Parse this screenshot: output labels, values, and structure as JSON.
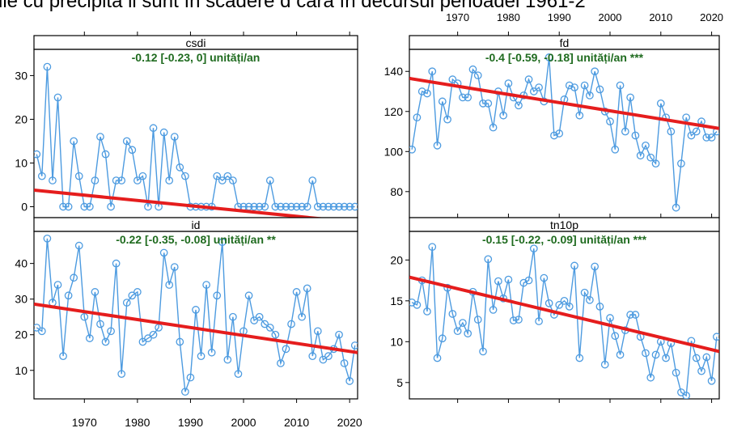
{
  "page": {
    "title": "ile cu precipită ii sunt în scădere d cară în decursul perioadei 1961-2"
  },
  "chart_data": [
    {
      "type": "line",
      "title": "csdi",
      "trend_label": "-0.12 [-0.23, 0] unități/an",
      "x": [
        1961,
        1962,
        1963,
        1964,
        1965,
        1966,
        1967,
        1968,
        1969,
        1970,
        1971,
        1972,
        1973,
        1974,
        1975,
        1976,
        1977,
        1978,
        1979,
        1980,
        1981,
        1982,
        1983,
        1984,
        1985,
        1986,
        1987,
        1988,
        1989,
        1990,
        1991,
        1992,
        1993,
        1994,
        1995,
        1996,
        1997,
        1998,
        1999,
        2000,
        2001,
        2002,
        2003,
        2004,
        2005,
        2006,
        2007,
        2008,
        2009,
        2010,
        2011,
        2012,
        2013,
        2014,
        2015,
        2016,
        2017,
        2018,
        2019,
        2020,
        2021
      ],
      "series": [
        {
          "values": [
            12,
            7,
            32,
            6,
            25,
            0,
            0,
            15,
            7,
            0,
            0,
            6,
            16,
            12,
            0,
            6,
            6,
            15,
            13,
            6,
            7,
            0,
            18,
            0,
            17,
            6,
            16,
            9,
            7,
            0,
            0,
            0,
            0,
            0,
            7,
            6,
            7,
            6,
            0,
            0,
            0,
            0,
            0,
            0,
            6,
            0,
            0,
            0,
            0,
            0,
            0,
            0,
            6,
            0,
            0,
            0,
            0,
            0,
            0,
            0,
            0
          ]
        }
      ],
      "trend": [
        3.8,
        -3.6
      ],
      "xlim": [
        1960.5,
        2021.5
      ],
      "ylim": [
        -2.5,
        36
      ],
      "yticks": [
        0,
        10,
        20,
        30
      ],
      "xticks": [
        1970,
        1980,
        1990,
        2000,
        2010,
        2020
      ]
    },
    {
      "type": "line",
      "title": "fd",
      "trend_label": "-0.4 [-0.59, -0.18] unități/an ***",
      "x": [
        1961,
        1962,
        1963,
        1964,
        1965,
        1966,
        1967,
        1968,
        1969,
        1970,
        1971,
        1972,
        1973,
        1974,
        1975,
        1976,
        1977,
        1978,
        1979,
        1980,
        1981,
        1982,
        1983,
        1984,
        1985,
        1986,
        1987,
        1988,
        1989,
        1990,
        1991,
        1992,
        1993,
        1994,
        1995,
        1996,
        1997,
        1998,
        1999,
        2000,
        2001,
        2002,
        2003,
        2004,
        2005,
        2006,
        2007,
        2008,
        2009,
        2010,
        2011,
        2012,
        2013,
        2014,
        2015,
        2016,
        2017,
        2018,
        2019,
        2020,
        2021
      ],
      "series": [
        {
          "values": [
            101,
            117,
            130,
            129,
            140,
            103,
            125,
            116,
            136,
            134,
            127,
            127,
            141,
            138,
            124,
            124,
            112,
            130,
            118,
            134,
            127,
            123,
            128,
            136,
            130,
            132,
            125,
            147,
            108,
            109,
            126,
            133,
            132,
            118,
            133,
            128,
            140,
            131,
            120,
            115,
            101,
            133,
            110,
            127,
            108,
            98,
            103,
            97,
            94,
            124,
            117,
            110,
            72,
            94,
            117,
            108,
            110,
            115,
            107,
            107,
            110
          ]
        }
      ],
      "trend": [
        136.5,
        111.5
      ],
      "xlim": [
        1960.5,
        2021.5
      ],
      "ylim": [
        67,
        151
      ],
      "yticks": [
        80,
        100,
        120,
        140
      ],
      "xticks": [
        1970,
        1980,
        1990,
        2000,
        2010,
        2020
      ]
    },
    {
      "type": "line",
      "title": "id",
      "trend_label": "-0.22 [-0.35, -0.08] unități/an **",
      "x": [
        1961,
        1962,
        1963,
        1964,
        1965,
        1966,
        1967,
        1968,
        1969,
        1970,
        1971,
        1972,
        1973,
        1974,
        1975,
        1976,
        1977,
        1978,
        1979,
        1980,
        1981,
        1982,
        1983,
        1984,
        1985,
        1986,
        1987,
        1988,
        1989,
        1990,
        1991,
        1992,
        1993,
        1994,
        1995,
        1996,
        1997,
        1998,
        1999,
        2000,
        2001,
        2002,
        2003,
        2004,
        2005,
        2006,
        2007,
        2008,
        2009,
        2010,
        2011,
        2012,
        2013,
        2014,
        2015,
        2016,
        2017,
        2018,
        2019,
        2020,
        2021
      ],
      "series": [
        {
          "values": [
            22,
            21,
            47,
            29,
            34,
            14,
            31,
            36,
            45,
            25,
            19,
            32,
            23,
            18,
            21,
            40,
            9,
            29,
            31,
            32,
            18,
            19,
            20,
            22,
            43,
            34,
            39,
            18,
            4,
            8,
            27,
            14,
            34,
            15,
            31,
            46,
            13,
            25,
            9,
            21,
            31,
            24,
            25,
            23,
            22,
            20,
            12,
            16,
            23,
            32,
            25,
            33,
            14,
            21,
            13,
            14,
            16,
            20,
            12,
            7,
            17
          ]
        }
      ],
      "trend": [
        28.6,
        15.0
      ],
      "xlim": [
        1960.5,
        2021.5
      ],
      "ylim": [
        2,
        49
      ],
      "yticks": [
        10,
        20,
        30,
        40
      ],
      "xticks": [
        1970,
        1980,
        1990,
        2000,
        2010,
        2020
      ]
    },
    {
      "type": "line",
      "title": "tn10p",
      "trend_label": "-0.15 [-0.22, -0.09] unități/an ***",
      "x": [
        1961,
        1962,
        1963,
        1964,
        1965,
        1966,
        1967,
        1968,
        1969,
        1970,
        1971,
        1972,
        1973,
        1974,
        1975,
        1976,
        1977,
        1978,
        1979,
        1980,
        1981,
        1982,
        1983,
        1984,
        1985,
        1986,
        1987,
        1988,
        1989,
        1990,
        1991,
        1992,
        1993,
        1994,
        1995,
        1996,
        1997,
        1998,
        1999,
        2000,
        2001,
        2002,
        2003,
        2004,
        2005,
        2006,
        2007,
        2008,
        2009,
        2010,
        2011,
        2012,
        2013,
        2014,
        2015,
        2016,
        2017,
        2018,
        2019,
        2020,
        2021
      ],
      "series": [
        {
          "values": [
            14.8,
            14.5,
            17.5,
            13.7,
            21.6,
            8.0,
            10.4,
            16.6,
            13.4,
            11.3,
            12.3,
            11.0,
            16.1,
            12.7,
            8.8,
            20.1,
            13.9,
            17.4,
            15.3,
            17.6,
            12.6,
            12.7,
            17.2,
            17.5,
            21.4,
            12.5,
            17.8,
            14.7,
            13.3,
            14.5,
            15.0,
            14.3,
            19.3,
            8.0,
            16.0,
            15.1,
            19.2,
            14.3,
            7.2,
            12.9,
            10.7,
            8.4,
            11.4,
            13.3,
            13.3,
            10.6,
            8.6,
            5.6,
            8.4,
            10.0,
            8.0,
            9.8,
            6.2,
            3.8,
            3.4,
            10.1,
            8.0,
            6.4,
            8.1,
            5.2,
            10.6
          ]
        }
      ],
      "trend": [
        17.9,
        8.8
      ],
      "xlim": [
        1960.5,
        2021.5
      ],
      "ylim": [
        3,
        23.5
      ],
      "yticks": [
        5,
        10,
        15,
        20
      ],
      "xticks": [
        1970,
        1980,
        1990,
        2000,
        2010,
        2020
      ]
    }
  ]
}
